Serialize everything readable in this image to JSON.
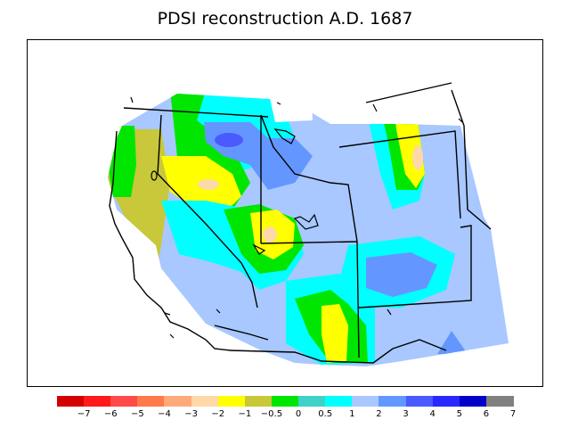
{
  "title": "PDSI reconstruction A.D. 1687",
  "legend": {
    "colors": [
      "#d40000",
      "#ff1a1a",
      "#ff4a4a",
      "#ff7a4a",
      "#ffaa7a",
      "#ffd8a8",
      "#ffff00",
      "#c8c83a",
      "#00e600",
      "#40d2c8",
      "#00ffff",
      "#a8c8ff",
      "#6496ff",
      "#4a5aff",
      "#2828ff",
      "#0000c8",
      "#808080"
    ],
    "labels": [
      "−7",
      "−6",
      "−5",
      "−4",
      "−3",
      "−2",
      "−1",
      "−0.5",
      "0",
      "0.5",
      "1",
      "2",
      "3",
      "4",
      "5",
      "6",
      "7"
    ]
  }
}
